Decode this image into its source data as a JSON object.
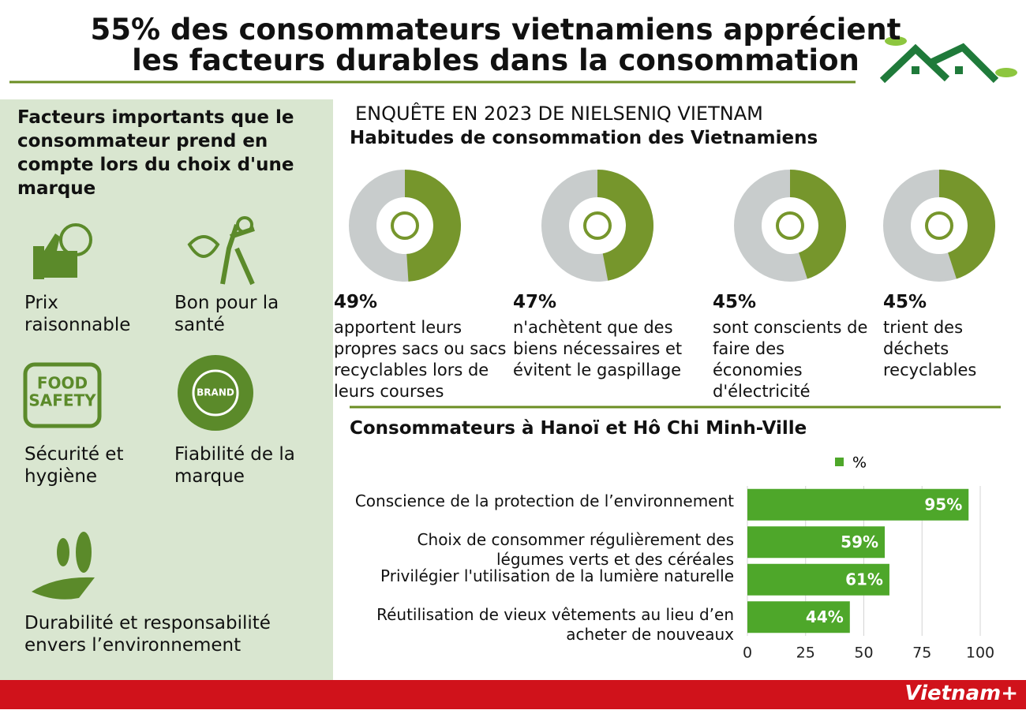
{
  "header": {
    "title_line1": "55% des consommateurs vietnamiens apprécient",
    "title_line2": "les facteurs durables dans la consommation"
  },
  "left_panel": {
    "title": "Facteurs importants que le consommateur prend en compte lors du choix d'une marque",
    "factors": [
      {
        "label": "Prix raisonnable"
      },
      {
        "label": "Bon pour la santé"
      },
      {
        "label": "Sécurité et hygiène",
        "icon_text": [
          "FOOD",
          "SAFETY"
        ]
      },
      {
        "label": "Fiabilité de la marque",
        "icon_text": [
          "BRAND"
        ]
      },
      {
        "label": "Durabilité et responsabilité envers l’environnement"
      }
    ]
  },
  "survey": {
    "source": "ENQUÊTE EN 2023 DE NIELSENIQ VIETNAM",
    "subtitle": "Habitudes de consommation des Vietnamiens"
  },
  "chart_data": [
    {
      "type": "donut",
      "values": [
        49
      ],
      "value_labels": [
        "49%"
      ],
      "description": "apportent leurs propres sacs ou sacs recyclables lors de leurs courses",
      "ylim": [
        0,
        100
      ],
      "color": "#76962c"
    },
    {
      "type": "donut",
      "values": [
        47
      ],
      "value_labels": [
        "47%"
      ],
      "description": "n'achètent que des biens nécessaires et évitent le gaspillage",
      "ylim": [
        0,
        100
      ],
      "color": "#76962c"
    },
    {
      "type": "donut",
      "values": [
        45
      ],
      "value_labels": [
        "45%"
      ],
      "description": "sont conscients de faire des économies d'électricité",
      "ylim": [
        0,
        100
      ],
      "color": "#76962c"
    },
    {
      "type": "donut",
      "values": [
        45
      ],
      "value_labels": [
        "45%"
      ],
      "description": "trient des déchets recyclables",
      "ylim": [
        0,
        100
      ],
      "color": "#76962c"
    },
    {
      "type": "bar",
      "orientation": "horizontal",
      "title": "Consommateurs à Hanoï et Hô Chi Minh-Ville",
      "categories": [
        "Conscience de la protection de l’environnement",
        "Choix de consommer régulièrement des légumes verts et des céréales",
        "Privilégier l'utilisation de la lumière naturelle",
        "Réutilisation de vieux vêtements au lieu d’en acheter de nouveaux"
      ],
      "series": [
        {
          "name": "%",
          "color": "#4ea72a",
          "values": [
            95,
            59,
            61,
            44
          ],
          "value_labels": [
            "95%",
            "59%",
            "61%",
            "44%"
          ]
        }
      ],
      "xlim": [
        0,
        100
      ],
      "xticks": [
        0,
        25,
        50,
        75,
        100
      ],
      "grid": true,
      "legend": "top"
    }
  ],
  "footer": {
    "brand": "Vietnam+"
  }
}
